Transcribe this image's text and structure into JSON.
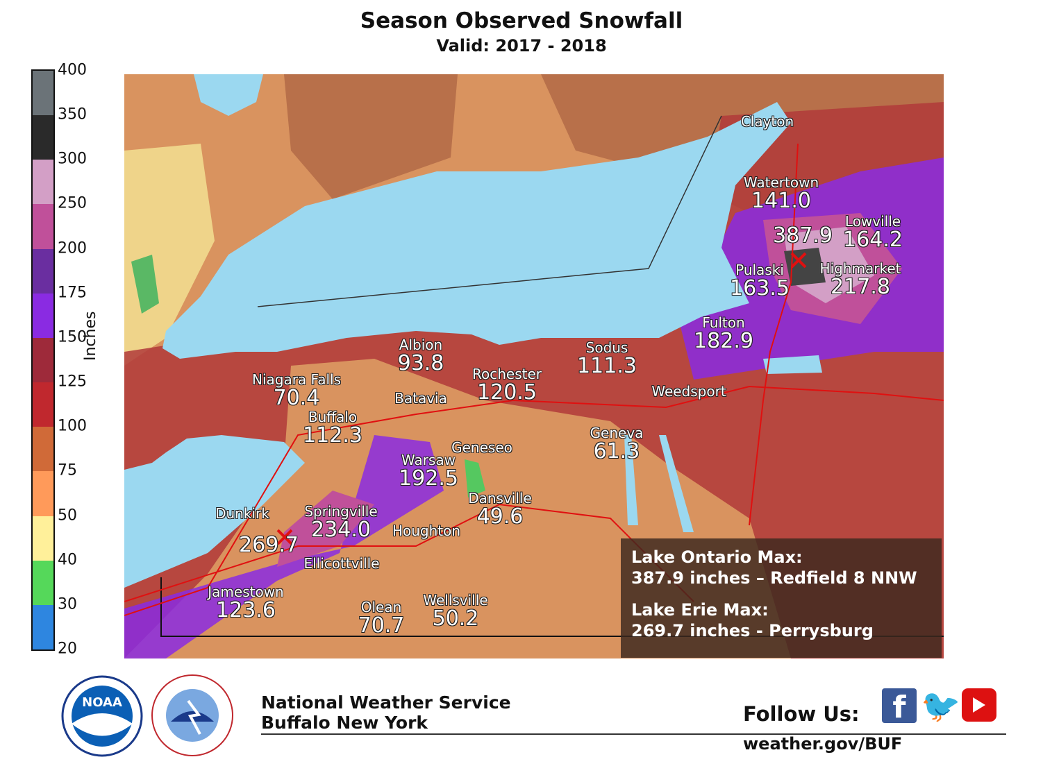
{
  "title": "Season Observed Snowfall",
  "subtitle": "Valid: 2017 - 2018",
  "colorbar": {
    "label": "Inches",
    "ticks": [
      "400",
      "350",
      "300",
      "250",
      "200",
      "175",
      "150",
      "125",
      "100",
      "75",
      "50",
      "40",
      "30",
      "20"
    ],
    "colors": [
      "#6b7378",
      "#2a2a2a",
      "#d39fc6",
      "#c0509a",
      "#6a2ea0",
      "#8a2be2",
      "#9e2a3a",
      "#c0282e",
      "#d06a38",
      "#ff9a5a",
      "#fff09a",
      "#55d85a",
      "#2e86e0"
    ]
  },
  "map": {
    "colors": {
      "lake": "#9bd8f0",
      "land_base": "#d9935f",
      "land_dark": "#b8704a",
      "county_line": "#444",
      "roads": "#e01010",
      "max_marker": "#e01010"
    },
    "cities": [
      {
        "name": "Clayton",
        "value": ""
      },
      {
        "name": "Watertown",
        "value": "141.0"
      },
      {
        "name": "Lowville",
        "value": "164.2"
      },
      {
        "name": "",
        "value": "387.9"
      },
      {
        "name": "Highmarket",
        "value": "217.8"
      },
      {
        "name": "Pulaski",
        "value": "163.5"
      },
      {
        "name": "Fulton",
        "value": "182.9"
      },
      {
        "name": "Sodus",
        "value": "111.3"
      },
      {
        "name": "Weedsport",
        "value": ""
      },
      {
        "name": "Albion",
        "value": "93.8"
      },
      {
        "name": "Rochester",
        "value": "120.5"
      },
      {
        "name": "Batavia",
        "value": ""
      },
      {
        "name": "Niagara Falls",
        "value": "70.4"
      },
      {
        "name": "Buffalo",
        "value": "112.3"
      },
      {
        "name": "Geneseo",
        "value": ""
      },
      {
        "name": "Warsaw",
        "value": "192.5"
      },
      {
        "name": "Geneva",
        "value": "61.3"
      },
      {
        "name": "Dansville",
        "value": "49.6"
      },
      {
        "name": "Springville",
        "value": "234.0"
      },
      {
        "name": "Houghton",
        "value": ""
      },
      {
        "name": "Dunkirk",
        "value": ""
      },
      {
        "name": "",
        "value": "269.7"
      },
      {
        "name": "Ellicottville",
        "value": ""
      },
      {
        "name": "Jamestown",
        "value": "123.6"
      },
      {
        "name": "Olean",
        "value": "70.7"
      },
      {
        "name": "Wellsville",
        "value": "50.2"
      }
    ],
    "max_box": {
      "ontario_label": "Lake Ontario Max:",
      "ontario_value": "387.9 inches – Redfield 8 NNW",
      "erie_label": "Lake Erie Max:",
      "erie_value": "269.7 inches - Perrysburg"
    }
  },
  "footer": {
    "org_line1": "National Weather Service",
    "org_line2": "Buffalo New York",
    "follow_label": "Follow Us:",
    "url": "weather.gov/BUF",
    "logos": [
      "NOAA",
      "NATIONAL WEATHER SERVICE"
    ],
    "social_icons": [
      "facebook-icon",
      "twitter-icon",
      "youtube-icon"
    ]
  }
}
